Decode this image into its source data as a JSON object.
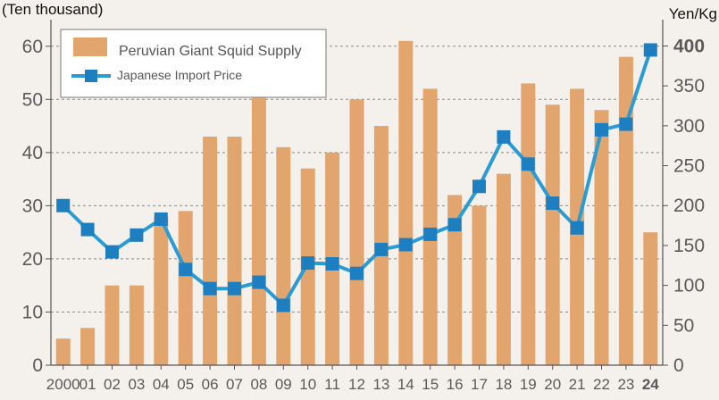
{
  "chart_data": {
    "type": "bar",
    "title": "",
    "ylabel_left": "(Ten thousand)",
    "ylabel_right": "Yen/Kg",
    "categories": [
      "2000",
      "01",
      "02",
      "03",
      "04",
      "05",
      "06",
      "07",
      "08",
      "09",
      "10",
      "11",
      "12",
      "13",
      "14",
      "15",
      "16",
      "17",
      "18",
      "19",
      "20",
      "21",
      "22",
      "23",
      "24"
    ],
    "highlight_category": "24",
    "highlight_right_tick": "400",
    "ylim_left": [
      0,
      65
    ],
    "ylim_right": [
      0,
      433
    ],
    "yticks_left": [
      0,
      10,
      20,
      30,
      40,
      50,
      60
    ],
    "yticks_right": [
      0,
      50,
      100,
      150,
      200,
      250,
      300,
      350,
      400
    ],
    "grid": true,
    "legend_position": "top-left",
    "colors": {
      "bar": "#e3a56e",
      "line": "#2a9bd4",
      "marker": "#1e7fc0",
      "highlight": "#e11b1b",
      "grid": "#8a8a8a",
      "background": "#f4f1ec"
    },
    "series": [
      {
        "name": "Peruvian Giant Squid Supply",
        "type": "bar",
        "axis": "left",
        "values": [
          5,
          7,
          15,
          15,
          28,
          29,
          43,
          43,
          53,
          41,
          37,
          40,
          50,
          45,
          61,
          52,
          32,
          30,
          36,
          53,
          49,
          52,
          48,
          58,
          25
        ]
      },
      {
        "name": "Japanese Import Price",
        "type": "line",
        "axis": "right",
        "values": [
          200,
          170,
          142,
          163,
          183,
          120,
          96,
          96,
          104,
          75,
          128,
          127,
          115,
          145,
          151,
          164,
          176,
          224,
          286,
          252,
          203,
          172,
          295,
          302,
          395
        ]
      }
    ]
  }
}
